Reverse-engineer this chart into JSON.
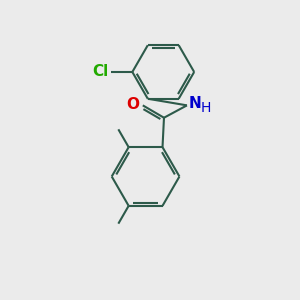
{
  "bg_color": "#ebebeb",
  "bond_color": "#2d5a4a",
  "bond_width": 1.5,
  "atom_colors": {
    "O": "#dd0000",
    "N": "#0000cc",
    "Cl": "#22aa00",
    "H": "#0000cc",
    "C": "#2d5a4a"
  },
  "font_size": 10,
  "fig_size": [
    3.0,
    3.0
  ],
  "dpi": 100
}
